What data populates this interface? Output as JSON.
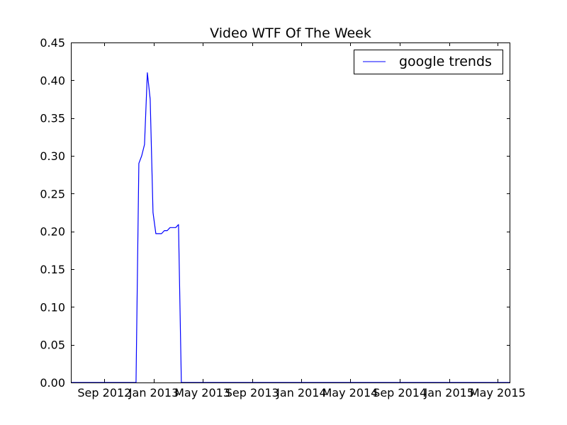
{
  "chart_data": {
    "type": "line",
    "title": "Video WTF Of The Week",
    "xlabel": "",
    "ylabel": "",
    "x_type": "date",
    "xlim": [
      "2012-06-10",
      "2015-06-01"
    ],
    "ylim": [
      0,
      0.45
    ],
    "grid": false,
    "legend": {
      "placement": "top-right",
      "entries": [
        "google trends"
      ]
    },
    "x_ticks": [
      {
        "date": "2012-09-01",
        "label": "Sep 2012"
      },
      {
        "date": "2013-01-01",
        "label": "Jan 2013"
      },
      {
        "date": "2013-05-01",
        "label": "May 2013"
      },
      {
        "date": "2013-09-01",
        "label": "Sep 2013"
      },
      {
        "date": "2014-01-01",
        "label": "Jan 2014"
      },
      {
        "date": "2014-05-01",
        "label": "May 2014"
      },
      {
        "date": "2014-09-01",
        "label": "Sep 2014"
      },
      {
        "date": "2015-01-01",
        "label": "Jan 2015"
      },
      {
        "date": "2015-05-01",
        "label": "May 2015"
      }
    ],
    "y_ticks": [
      {
        "value": 0.0,
        "label": "0.00"
      },
      {
        "value": 0.05,
        "label": "0.05"
      },
      {
        "value": 0.1,
        "label": "0.10"
      },
      {
        "value": 0.15,
        "label": "0.15"
      },
      {
        "value": 0.2,
        "label": "0.20"
      },
      {
        "value": 0.25,
        "label": "0.25"
      },
      {
        "value": 0.3,
        "label": "0.30"
      },
      {
        "value": 0.35,
        "label": "0.35"
      },
      {
        "value": 0.4,
        "label": "0.40"
      },
      {
        "value": 0.45,
        "label": "0.45"
      }
    ],
    "series": [
      {
        "name": "google trends",
        "color": "#0000ff",
        "points": [
          {
            "x": "2012-06-10",
            "y": 0.0
          },
          {
            "x": "2012-11-18",
            "y": 0.0
          },
          {
            "x": "2012-11-25",
            "y": 0.29
          },
          {
            "x": "2012-12-02",
            "y": 0.3
          },
          {
            "x": "2012-12-09",
            "y": 0.315
          },
          {
            "x": "2012-12-16",
            "y": 0.41
          },
          {
            "x": "2012-12-23",
            "y": 0.375
          },
          {
            "x": "2012-12-30",
            "y": 0.225
          },
          {
            "x": "2013-01-06",
            "y": 0.197
          },
          {
            "x": "2013-01-13",
            "y": 0.197
          },
          {
            "x": "2013-01-20",
            "y": 0.197
          },
          {
            "x": "2013-01-27",
            "y": 0.201
          },
          {
            "x": "2013-02-03",
            "y": 0.201
          },
          {
            "x": "2013-02-10",
            "y": 0.205
          },
          {
            "x": "2013-02-17",
            "y": 0.205
          },
          {
            "x": "2013-02-24",
            "y": 0.205
          },
          {
            "x": "2013-03-03",
            "y": 0.209
          },
          {
            "x": "2013-03-10",
            "y": 0.0
          },
          {
            "x": "2015-06-01",
            "y": 0.0
          }
        ]
      }
    ]
  }
}
